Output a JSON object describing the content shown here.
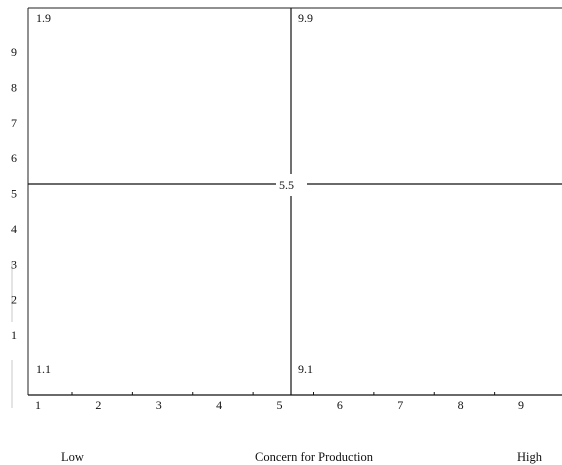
{
  "chart_data": {
    "type": "managerial-grid",
    "x_ticks": [
      "1",
      "2",
      "3",
      "4",
      "5",
      "6",
      "7",
      "8",
      "9"
    ],
    "y_ticks": [
      "1",
      "2",
      "3",
      "4",
      "5",
      "6",
      "7",
      "8",
      "9"
    ],
    "xlim": [
      1,
      9
    ],
    "ylim": [
      1,
      9
    ],
    "quadrant_labels": {
      "top_left": "1.9",
      "top_right": "9.9",
      "center": "5.5",
      "bottom_left": "1.1",
      "bottom_right": "9.1"
    },
    "x_axis": {
      "low_label": "Low",
      "title": "Concern for Production",
      "high_label": "High"
    }
  }
}
